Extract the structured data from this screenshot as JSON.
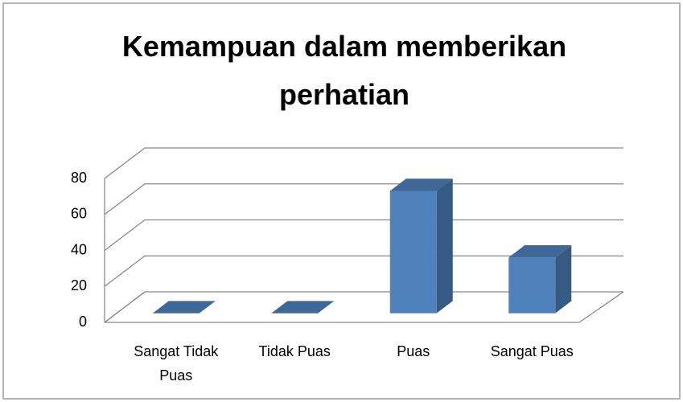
{
  "chart_data": {
    "type": "bar3d",
    "title": "Kemampuan dalam memberikan perhatian",
    "categories": [
      "Sangat Tidak Puas",
      "Tidak Puas",
      "Puas",
      "Sangat Puas"
    ],
    "values": [
      0,
      0,
      68,
      31
    ],
    "color": "#4f81bd",
    "ylim": [
      0,
      80
    ],
    "yticks": [
      0,
      20,
      40,
      60,
      80
    ],
    "grid": true
  }
}
